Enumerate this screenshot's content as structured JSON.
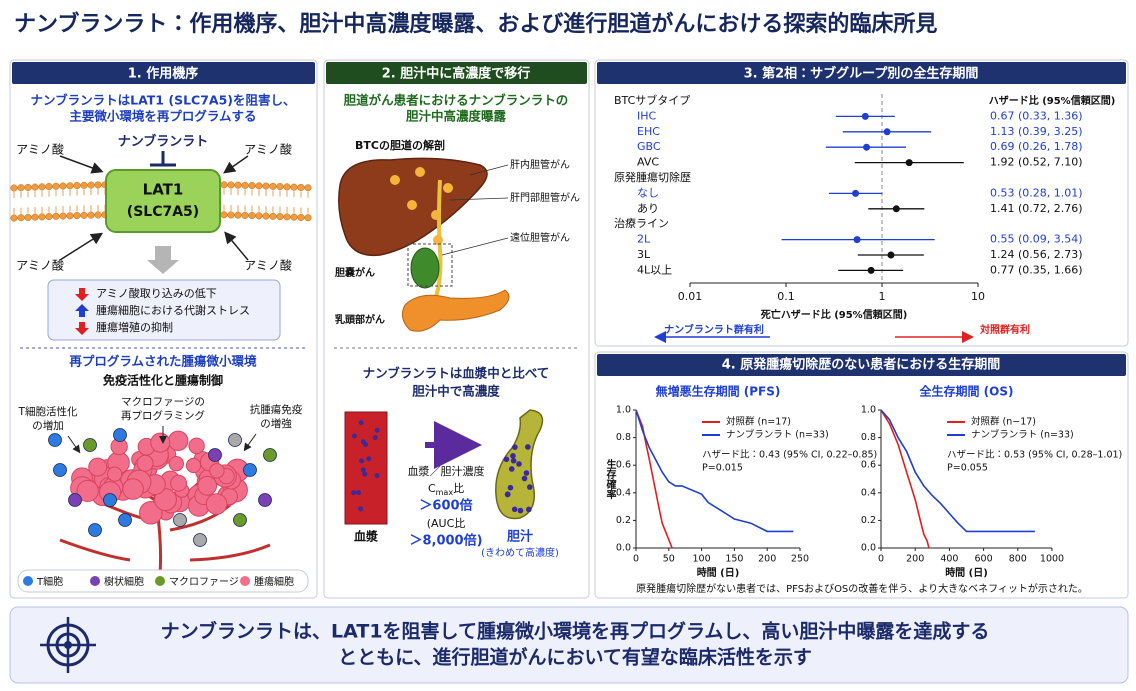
{
  "title": "ナンブランラト：作用機序、胆汁中高濃度曝露、および進行胆道がんにおける探索的臨床所見",
  "mechanism": {
    "header": "1. 作用機序",
    "lead": [
      "ナンブランラトはLAT1 (SLC7A5)を阻害し、",
      "主要微小環境を再プログラムする"
    ],
    "drug": "ナンブランラト",
    "amino_acid": [
      "アミノ酸",
      "アミノ酸",
      "アミノ酸",
      "アミノ酸"
    ],
    "transporter": [
      "LAT1",
      "(SLC7A5)"
    ],
    "effects": [
      "アミノ酸取り込みの低下",
      "腫瘍細胞における代謝ストレス",
      "腫瘍増殖の抑制"
    ],
    "tme_title": "再プログラムされた腫瘍微小環境",
    "tme_subtitle": "免疫活性化と腫瘍制御",
    "callouts": [
      [
        "T細胞活性化",
        "の増加"
      ],
      [
        "マクロファージの",
        "再プログラミング"
      ],
      [
        "抗腫瘍免疫",
        "の増強"
      ]
    ],
    "legend": [
      "T細胞",
      "樹状細胞",
      "マクロファージ",
      "腫瘍細胞"
    ]
  },
  "bile": {
    "header": "2. 胆汁中に高濃度で移行",
    "lead": [
      "胆道がん患者におけるナンブランラトの",
      "胆汁中高濃度曝露"
    ],
    "anatomy_title": "BTCの胆道の解剖",
    "sites": [
      "肝内胆管がん",
      "肝門部胆管がん",
      "遠位胆管がん",
      "胆嚢がん",
      "乳頭部がん"
    ],
    "claim": [
      "ナンブランラトは血漿中と比べて",
      "胆汁中で高濃度"
    ],
    "ratio_label": "血漿／胆汁濃度",
    "cmax": "C",
    "cmax_sub": "max",
    "cmax_suffix": "比",
    "cmax_value": "＞600倍",
    "auc": "(AUC比",
    "auc_value": "＞8,000倍)",
    "plasma": "血漿",
    "bile_label": "胆汁",
    "bile_note": "(きわめて高濃度)"
  },
  "chart_data": [
    {
      "type": "forest",
      "title": "3. 第2相：サブグループ別の全生存期間",
      "column_header": "ハザード比 (95%信頼区間)",
      "categories": [
        "BTCサブタイプ",
        "IHC",
        "EHC",
        "GBC",
        "AVC",
        "原発腫瘍切除歴",
        "なし",
        "あり",
        "治療ライン",
        "2L",
        "3L",
        "4L以上"
      ],
      "values": [
        null,
        0.67,
        1.13,
        0.69,
        1.92,
        null,
        0.53,
        1.41,
        null,
        0.55,
        1.24,
        0.77
      ],
      "lower": [
        null,
        0.33,
        0.39,
        0.26,
        0.52,
        null,
        0.28,
        0.72,
        null,
        0.09,
        0.56,
        0.35
      ],
      "upper": [
        null,
        1.36,
        3.25,
        1.78,
        7.1,
        null,
        1.01,
        2.76,
        null,
        3.54,
        2.73,
        1.66
      ],
      "value_labels": [
        null,
        "0.67 (0.33, 1.36)",
        "1.13 (0.39, 3.25)",
        "0.69 (0.26, 1.78)",
        "1.92 (0.52, 7.10)",
        null,
        "0.53 (0.28, 1.01)",
        "1.41 (0.72, 2.76)",
        null,
        "0.55 (0.09, 3.54)",
        "1.24 (0.56, 2.73)",
        "0.77 (0.35, 1.66)"
      ],
      "colors": [
        null,
        "#1f3fd1",
        "#1f3fd1",
        "#1f3fd1",
        "#111111",
        null,
        "#1f3fd1",
        "#111111",
        null,
        "#1f3fd1",
        "#111111",
        "#111111"
      ],
      "log_x": true,
      "xlim": [
        0.01,
        10
      ],
      "xticks": [
        0.01,
        0.1,
        1,
        10
      ],
      "reference_line": 1,
      "xlabel": "死亡ハザード比 (95%信頼区間)",
      "favors": [
        {
          "text": "ナンブランラト群有利",
          "color": "#1f3fd1"
        },
        {
          "text": "対照群有利",
          "color": "#e02020"
        }
      ]
    },
    {
      "type": "line",
      "title": "無増悪生存期間 (PFS)",
      "xlabel": "時間 (日)",
      "ylabel": "生存確率",
      "xlim": [
        0,
        250
      ],
      "xticks": [
        0,
        50,
        100,
        150,
        200,
        250
      ],
      "ylim": [
        0,
        1
      ],
      "yticks": [
        {
          "value": 0,
          "label": "0.0"
        },
        0.2,
        0.4,
        0.6,
        0.8,
        {
          "value": 1,
          "label": "1.0"
        }
      ],
      "series": [
        {
          "name": "対照群 (n=17)",
          "color": "#e02020",
          "x": [
            0,
            5,
            10,
            15,
            20,
            25,
            30,
            35,
            40,
            45,
            50,
            55
          ],
          "values": [
            1,
            0.94,
            0.88,
            0.76,
            0.65,
            0.53,
            0.41,
            0.29,
            0.18,
            0.12,
            0.06,
            0
          ]
        },
        {
          "name": "ナンブランラト (n=33)",
          "color": "#1f3fd1",
          "x": [
            0,
            10,
            20,
            30,
            40,
            50,
            60,
            70,
            100,
            110,
            130,
            150,
            175,
            200,
            240
          ],
          "values": [
            1,
            0.85,
            0.73,
            0.64,
            0.55,
            0.48,
            0.45,
            0.45,
            0.39,
            0.33,
            0.27,
            0.21,
            0.18,
            0.12,
            0.12
          ]
        }
      ],
      "annotation": [
        "ハザード比：0.43 (95% CI, 0.22–0.85)",
        "P=0.015"
      ]
    },
    {
      "type": "line",
      "title": "全生存期間 (OS)",
      "xlabel": "時間 (日)",
      "xlim": [
        0,
        1000
      ],
      "xticks": [
        0,
        200,
        400,
        600,
        800,
        1000
      ],
      "ylim": [
        0,
        1
      ],
      "yticks": [
        {
          "value": 0,
          "label": "0.0"
        },
        0.2,
        0.4,
        0.6,
        0.8,
        {
          "value": 1,
          "label": "1.0"
        }
      ],
      "series": [
        {
          "name": "対照群 (n−17)",
          "color": "#e02020",
          "x": [
            0,
            50,
            100,
            150,
            200,
            230,
            250,
            270,
            280
          ],
          "values": [
            1,
            0.9,
            0.75,
            0.55,
            0.35,
            0.2,
            0.1,
            0.05,
            0
          ]
        },
        {
          "name": "ナンブランラト (n=33)",
          "color": "#1f3fd1",
          "x": [
            0,
            50,
            100,
            150,
            200,
            250,
            300,
            350,
            400,
            450,
            500,
            900
          ],
          "values": [
            1,
            0.93,
            0.8,
            0.7,
            0.55,
            0.45,
            0.38,
            0.32,
            0.25,
            0.18,
            0.12,
            0.12
          ]
        }
      ],
      "annotation": [
        "ハザード比：0.53 (95% CI, 0.28–1.01)",
        "P=0.055"
      ]
    }
  ],
  "survival_header": "4. 原発腫瘍切除歴のない患者における生存期間",
  "footnote": "原発腫瘍切除歴がない患者では、PFSおよびOSの改善を伴う、より大きなベネフィットが示された。",
  "conclusion": [
    "ナンブランラトは、LAT1を阻害して腫瘍微小環境を再プログラムし、高い胆汁中曝露を達成する",
    "とともに、進行胆道がんにおいて有望な臨床活性を示す"
  ]
}
